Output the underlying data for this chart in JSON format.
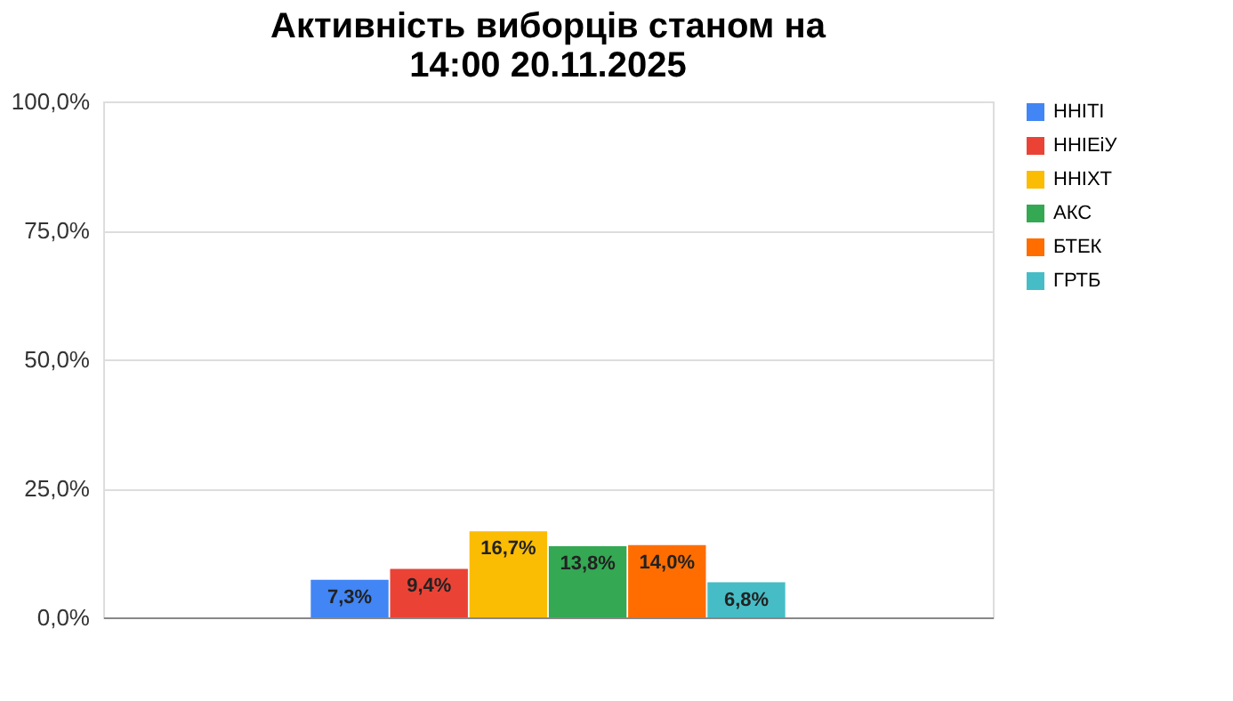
{
  "chart_data": {
    "type": "bar",
    "title": [
      "Активність виборців станом на",
      "14:00 20.11.2025"
    ],
    "categories": [
      null
    ],
    "series": [
      {
        "name": "ННІТІ",
        "color": "#4285f4",
        "values": [
          7.3
        ],
        "value_labels": [
          "7,3%"
        ]
      },
      {
        "name": "ННІЕіУ",
        "color": "#ea4335",
        "values": [
          9.4
        ],
        "value_labels": [
          "9,4%"
        ]
      },
      {
        "name": "ННІХТ",
        "color": "#fbbc04",
        "values": [
          16.7
        ],
        "value_labels": [
          "16,7%"
        ]
      },
      {
        "name": "АКС",
        "color": "#34a853",
        "values": [
          13.8
        ],
        "value_labels": [
          "13,8%"
        ]
      },
      {
        "name": "БТЕК",
        "color": "#ff6d01",
        "values": [
          14.0
        ],
        "value_labels": [
          "14,0%"
        ]
      },
      {
        "name": "ГРТБ",
        "color": "#46bdc6",
        "values": [
          6.8
        ],
        "value_labels": [
          "6,8%"
        ]
      }
    ],
    "ylim": [
      0,
      100
    ],
    "yticks": [
      {
        "value": 0,
        "label": "0,0%"
      },
      {
        "value": 25,
        "label": "25,0%"
      },
      {
        "value": 50,
        "label": "50,0%"
      },
      {
        "value": 75,
        "label": "75,0%"
      },
      {
        "value": 100,
        "label": "100,0%"
      }
    ],
    "grid": "y",
    "legend": "right",
    "tick_labels": "y"
  }
}
